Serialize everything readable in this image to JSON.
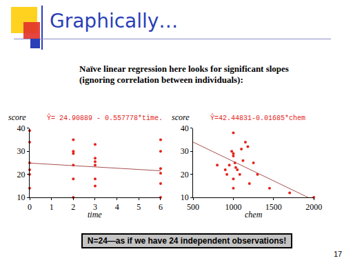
{
  "slide": {
    "title": "Graphically…",
    "text": "Naïve linear regression here looks for significant slopes (ignoring correlation between individuals):",
    "footer": "N=24—as if we have 24 independent observations!",
    "page": "17"
  },
  "chart_data": [
    {
      "type": "scatter",
      "equation": "Ŷ= 24.90889 - 0.557778*time.",
      "x_label": "time",
      "y_label": "score",
      "x": [
        0,
        0,
        0,
        0,
        0,
        0,
        2,
        2,
        2,
        2,
        2,
        2,
        3,
        3,
        3,
        3,
        3,
        3,
        6,
        6,
        6,
        6,
        6,
        6
      ],
      "values": [
        39,
        34,
        25,
        22,
        20,
        14,
        35,
        30,
        29,
        24,
        18,
        10,
        33,
        27,
        25.5,
        24,
        18,
        15,
        35,
        30,
        22.5,
        20.5,
        16,
        10
      ],
      "color": "#e3241b",
      "marker": "circle",
      "fit": {
        "x": [
          0,
          6
        ],
        "values": [
          24.9,
          21.56
        ],
        "color": "#a85050"
      },
      "xlim": [
        0,
        6
      ],
      "xticks": [
        0,
        1,
        2,
        3,
        4,
        5,
        6
      ],
      "ylim": [
        10,
        40
      ],
      "yticks": [
        10,
        20,
        30,
        40
      ],
      "grid": false
    },
    {
      "type": "scatter",
      "equation": "Ŷ=42.44831-0.01685*chem",
      "x_label": "chem",
      "y_label": "score",
      "x": [
        800,
        900,
        920,
        950,
        980,
        1000,
        1000,
        1000,
        1020,
        1000,
        1000,
        1050,
        1080,
        1100,
        1120,
        1150,
        1180,
        1200,
        1250,
        1300,
        1450,
        1700,
        2000,
        1030
      ],
      "values": [
        24,
        22,
        20,
        24,
        30,
        38,
        29,
        28,
        25,
        18,
        14,
        22,
        20,
        31,
        26,
        34,
        32,
        16,
        25,
        20,
        14,
        12,
        10,
        23
      ],
      "color": "#e3241b",
      "marker": "circle",
      "fit": {
        "x": [
          500,
          2000
        ],
        "values": [
          34.0,
          8.8
        ],
        "color": "#a85050"
      },
      "xlim": [
        500,
        2000
      ],
      "xticks": [
        500,
        1000,
        1500,
        2000
      ],
      "ylim": [
        10,
        40
      ],
      "yticks": [
        10,
        20,
        30,
        40
      ],
      "grid": false
    }
  ]
}
